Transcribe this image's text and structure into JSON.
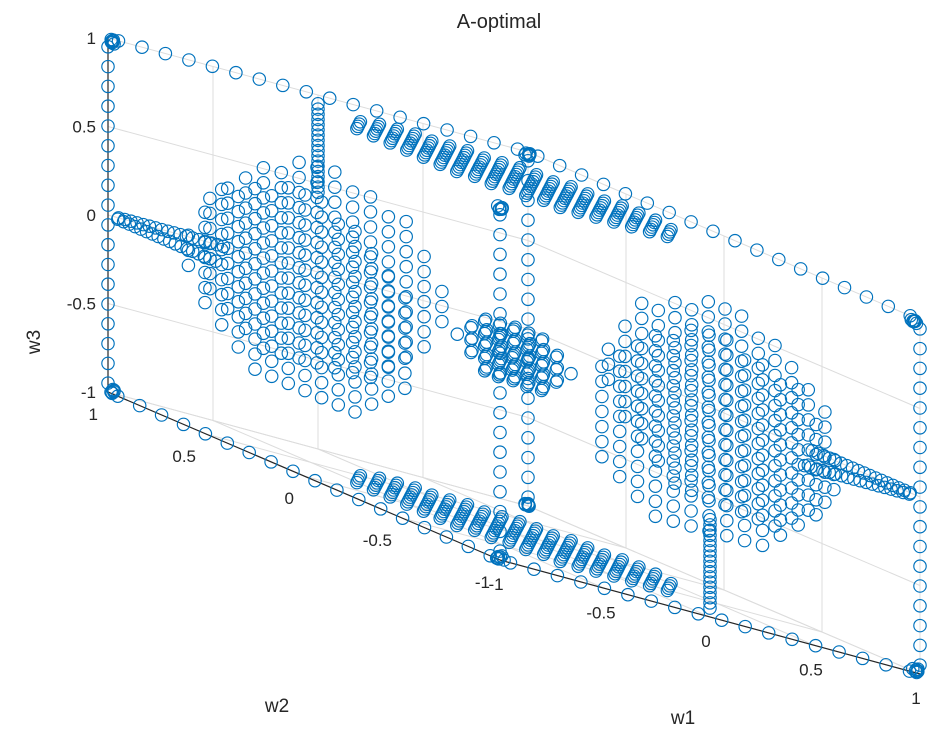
{
  "chart_data": {
    "type": "scatter",
    "subtype": "3d-scatter",
    "title": "A-optimal",
    "xlabel": "w1",
    "ylabel": "w2",
    "zlabel": "w3",
    "xlim": [
      -1,
      1
    ],
    "ylim": [
      -1,
      1
    ],
    "zlim": [
      -1,
      1
    ],
    "xticks": [
      "-1",
      "-0.5",
      "0",
      "0.5",
      "1"
    ],
    "yticks": [
      "-1",
      "-0.5",
      "0",
      "0.5",
      "1"
    ],
    "zticks": [
      "-1",
      "-0.5",
      "0",
      "0.5",
      "1"
    ],
    "grid": true,
    "marker": "circle-open",
    "color": "#0072BD",
    "clusters": [
      {
        "type": "point",
        "center": [
          1,
          1,
          1
        ]
      },
      {
        "type": "point",
        "center": [
          -1,
          1,
          1
        ]
      },
      {
        "type": "point",
        "center": [
          1,
          -1,
          1
        ]
      },
      {
        "type": "point",
        "center": [
          -1,
          -1,
          1
        ]
      },
      {
        "type": "point",
        "center": [
          1,
          1,
          -1
        ]
      },
      {
        "type": "point",
        "center": [
          -1,
          1,
          -1
        ]
      },
      {
        "type": "point",
        "center": [
          1,
          -1,
          -1
        ]
      },
      {
        "type": "point",
        "center": [
          -1,
          -1,
          -1
        ]
      },
      {
        "type": "line",
        "axis": "w1",
        "fixed": {
          "w2": 1,
          "w3": 1
        },
        "range": [
          -0.95,
          0.95
        ]
      },
      {
        "type": "line",
        "axis": "w1",
        "fixed": {
          "w2": -1,
          "w3": -1
        },
        "range": [
          -0.95,
          0.95
        ]
      },
      {
        "type": "line",
        "axis": "w2",
        "fixed": {
          "w1": 1,
          "w3": 1
        },
        "range": [
          -0.95,
          0.95
        ]
      },
      {
        "type": "line",
        "axis": "w2",
        "fixed": {
          "w1": -1,
          "w3": -1
        },
        "range": [
          -0.95,
          0.95
        ]
      },
      {
        "type": "line",
        "axis": "w3",
        "fixed": {
          "w1": 1,
          "w2": -1
        },
        "range": [
          -0.95,
          0.95
        ]
      },
      {
        "type": "line",
        "axis": "w3",
        "fixed": {
          "w1": -1,
          "w2": 1
        },
        "range": [
          -0.95,
          0.95
        ]
      },
      {
        "type": "line",
        "axis": "w3",
        "fixed": {
          "w1": 1,
          "w2": 1
        },
        "range": [
          -0.95,
          0.95
        ]
      },
      {
        "type": "line",
        "axis": "w3",
        "fixed": {
          "w1": -1,
          "w2": -1
        },
        "range": [
          -0.95,
          0.95
        ]
      },
      {
        "type": "disk",
        "normal": "w1",
        "center": [
          -1,
          0,
          0
        ],
        "radius": 0.6
      },
      {
        "type": "disk",
        "normal": "w1",
        "center": [
          1,
          0,
          0
        ],
        "radius": 0.6
      },
      {
        "type": "disk",
        "normal": "w2",
        "center": [
          0,
          -1,
          0
        ],
        "radius": 0.6
      },
      {
        "type": "disk",
        "normal": "w2",
        "center": [
          0,
          1,
          0
        ],
        "radius": 0.6
      },
      {
        "type": "disk",
        "normal": "w3",
        "center": [
          0,
          0,
          1
        ],
        "radius": 0.6
      },
      {
        "type": "disk",
        "normal": "w3",
        "center": [
          0,
          0,
          -1
        ],
        "radius": 0.6
      },
      {
        "type": "line",
        "axis": "w1",
        "fixed": {
          "w2": 1,
          "w3": 0
        },
        "range": [
          -0.95,
          -0.45
        ]
      },
      {
        "type": "line",
        "axis": "w1",
        "fixed": {
          "w2": -1,
          "w3": 0
        },
        "range": [
          0.45,
          0.95
        ]
      },
      {
        "type": "line",
        "axis": "w2",
        "fixed": {
          "w1": -1,
          "w3": 0
        },
        "range": [
          0.45,
          0.95
        ]
      },
      {
        "type": "line",
        "axis": "w2",
        "fixed": {
          "w1": 1,
          "w3": 0
        },
        "range": [
          -0.95,
          -0.45
        ]
      },
      {
        "type": "line",
        "axis": "w3",
        "fixed": {
          "w1": 0,
          "w2": 1
        },
        "range": [
          0.45,
          0.95
        ]
      },
      {
        "type": "line",
        "axis": "w3",
        "fixed": {
          "w1": 0,
          "w2": -1
        },
        "range": [
          -0.95,
          -0.45
        ]
      },
      {
        "type": "ball",
        "center": [
          0,
          0,
          0
        ],
        "radius": 0.2
      }
    ]
  }
}
